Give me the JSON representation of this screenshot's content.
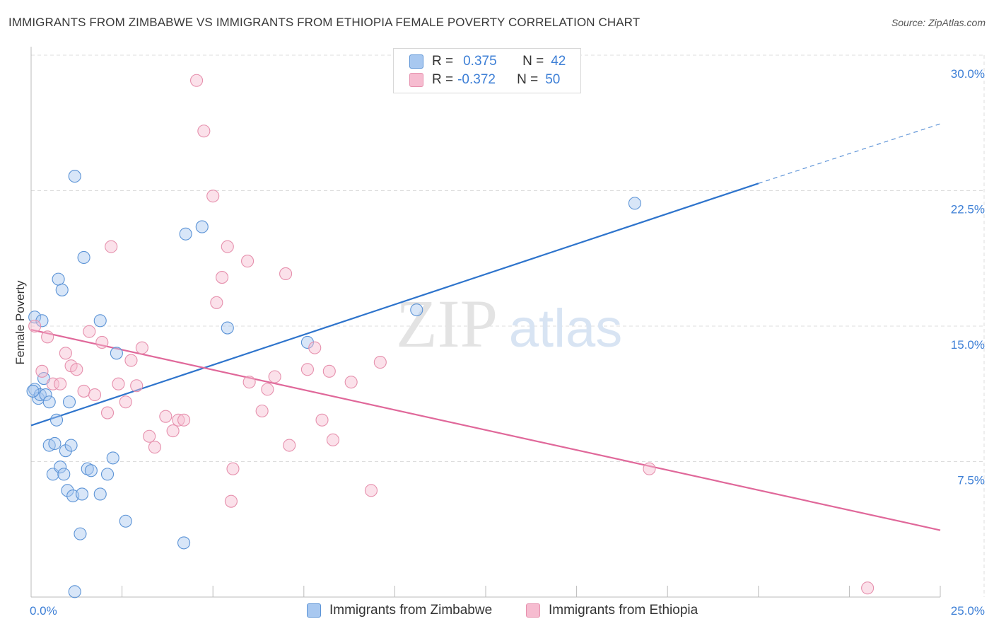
{
  "header": {
    "title": "IMMIGRANTS FROM ZIMBABWE VS IMMIGRANTS FROM ETHIOPIA FEMALE POVERTY CORRELATION CHART",
    "source": "Source: ZipAtlas.com"
  },
  "legend": {
    "series": [
      {
        "r_label": "R =",
        "r_value": "0.375",
        "n_label": "N =",
        "n_value": "42"
      },
      {
        "r_label": "R =",
        "r_value": "-0.372",
        "n_label": "N =",
        "n_value": "50"
      }
    ]
  },
  "watermark": {
    "zip": "ZIP",
    "atlas": "atlas"
  },
  "colors": {
    "zimbabwe_fill": "#a8c8f0",
    "zimbabwe_stroke": "#5b93d6",
    "zimbabwe_line": "#2e74cc",
    "ethiopia_fill": "#f6bcd0",
    "ethiopia_stroke": "#e690ad",
    "ethiopia_line": "#e0689a",
    "tick_label": "#3d7fd6",
    "grid": "#dcdcdc"
  },
  "chart_data": {
    "type": "scatter",
    "title": "IMMIGRANTS FROM ZIMBABWE VS IMMIGRANTS FROM ETHIOPIA FEMALE POVERTY CORRELATION CHART",
    "xlabel": "",
    "ylabel": "Female Poverty",
    "xlim": [
      0,
      25
    ],
    "ylim": [
      0,
      30
    ],
    "x_tick_labels": [
      "0.0%",
      "25.0%"
    ],
    "y_ticks": [
      7.5,
      15.0,
      22.5,
      30.0
    ],
    "y_tick_labels": [
      "7.5%",
      "15.0%",
      "22.5%",
      "30.0%"
    ],
    "grid": true,
    "legend_position": "top-center",
    "series": [
      {
        "name": "Immigrants from Zimbabwe",
        "points": [
          [
            0.1,
            15.5
          ],
          [
            0.1,
            11.5
          ],
          [
            0.2,
            11.0
          ],
          [
            0.25,
            11.2
          ],
          [
            0.3,
            15.3
          ],
          [
            0.35,
            12.1
          ],
          [
            0.4,
            11.2
          ],
          [
            0.5,
            10.8
          ],
          [
            0.5,
            8.4
          ],
          [
            0.6,
            6.8
          ],
          [
            0.65,
            8.5
          ],
          [
            0.7,
            9.8
          ],
          [
            0.75,
            17.6
          ],
          [
            0.8,
            7.2
          ],
          [
            0.85,
            17.0
          ],
          [
            0.9,
            6.8
          ],
          [
            0.95,
            8.1
          ],
          [
            1.0,
            5.9
          ],
          [
            1.05,
            10.8
          ],
          [
            1.1,
            8.4
          ],
          [
            1.15,
            5.6
          ],
          [
            1.2,
            0.3
          ],
          [
            1.2,
            23.3
          ],
          [
            1.35,
            3.5
          ],
          [
            1.4,
            5.7
          ],
          [
            1.45,
            18.8
          ],
          [
            1.55,
            7.1
          ],
          [
            1.65,
            7.0
          ],
          [
            1.9,
            5.7
          ],
          [
            1.9,
            15.3
          ],
          [
            2.1,
            6.8
          ],
          [
            2.25,
            7.7
          ],
          [
            2.35,
            13.5
          ],
          [
            2.6,
            4.2
          ],
          [
            4.2,
            3.0
          ],
          [
            4.25,
            20.1
          ],
          [
            4.7,
            20.5
          ],
          [
            5.4,
            14.9
          ],
          [
            7.6,
            14.1
          ],
          [
            10.6,
            15.9
          ],
          [
            16.6,
            21.8
          ],
          [
            0.05,
            11.4
          ]
        ],
        "trend": {
          "x": [
            0.0,
            20.0
          ],
          "y": [
            9.5,
            22.9
          ],
          "extension": {
            "x": [
              20.0,
              25.0
            ],
            "y": [
              22.9,
              26.2
            ]
          }
        }
      },
      {
        "name": "Immigrants from Ethiopia",
        "points": [
          [
            0.1,
            15.0
          ],
          [
            0.3,
            12.5
          ],
          [
            0.45,
            14.4
          ],
          [
            0.6,
            11.8
          ],
          [
            0.8,
            11.8
          ],
          [
            0.95,
            13.5
          ],
          [
            1.1,
            12.8
          ],
          [
            1.25,
            12.6
          ],
          [
            1.45,
            11.4
          ],
          [
            1.6,
            14.7
          ],
          [
            1.75,
            11.2
          ],
          [
            1.95,
            14.1
          ],
          [
            2.1,
            10.2
          ],
          [
            2.2,
            19.4
          ],
          [
            2.4,
            11.8
          ],
          [
            2.6,
            10.8
          ],
          [
            2.75,
            13.1
          ],
          [
            2.9,
            11.7
          ],
          [
            3.05,
            13.8
          ],
          [
            3.25,
            8.9
          ],
          [
            3.4,
            8.3
          ],
          [
            3.7,
            10.0
          ],
          [
            3.9,
            9.2
          ],
          [
            4.05,
            9.8
          ],
          [
            4.2,
            9.8
          ],
          [
            4.55,
            28.6
          ],
          [
            4.75,
            25.8
          ],
          [
            5.0,
            22.2
          ],
          [
            5.1,
            16.3
          ],
          [
            5.25,
            17.7
          ],
          [
            5.4,
            19.4
          ],
          [
            5.5,
            5.3
          ],
          [
            5.55,
            7.1
          ],
          [
            5.95,
            18.6
          ],
          [
            6.0,
            11.9
          ],
          [
            6.35,
            10.3
          ],
          [
            6.5,
            11.5
          ],
          [
            6.7,
            12.2
          ],
          [
            7.0,
            17.9
          ],
          [
            7.1,
            8.4
          ],
          [
            7.6,
            12.6
          ],
          [
            7.8,
            13.8
          ],
          [
            8.0,
            9.8
          ],
          [
            8.2,
            12.5
          ],
          [
            8.3,
            8.7
          ],
          [
            8.8,
            11.9
          ],
          [
            9.35,
            5.9
          ],
          [
            9.6,
            13.0
          ],
          [
            17.0,
            7.1
          ],
          [
            23.0,
            0.5
          ]
        ],
        "trend": {
          "x": [
            0.0,
            25.0
          ],
          "y": [
            14.8,
            3.7
          ]
        }
      }
    ]
  },
  "bottom_legend": {
    "zimbabwe": "Immigrants from Zimbabwe",
    "ethiopia": "Immigrants from Ethiopia"
  }
}
